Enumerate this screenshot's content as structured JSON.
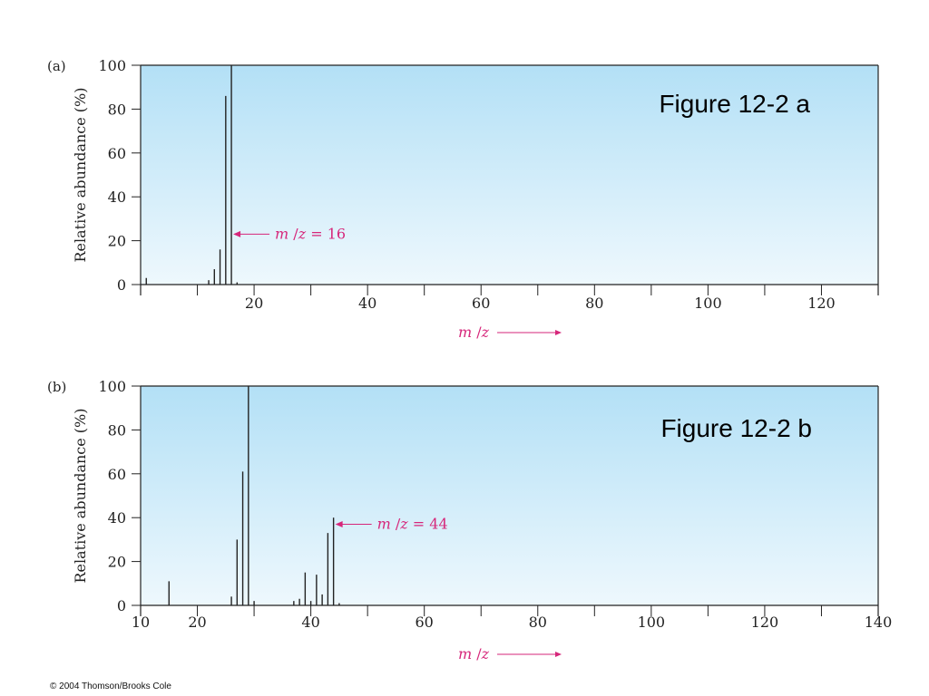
{
  "copyright": "© 2004 Thomson/Brooks Cole",
  "colors": {
    "accent": "#d6267a",
    "panel_top": "#b3e0f6",
    "panel_bottom": "#eef8fd",
    "line": "#222222"
  },
  "chart_data": [
    {
      "type": "bar",
      "panel_label": "(a)",
      "figure_caption": "Figure 12-2 a",
      "ylabel": "Relative abundance (%)",
      "xlabel": "m/z",
      "xlim": [
        0,
        130
      ],
      "ylim": [
        0,
        100
      ],
      "x_ticks": [
        20,
        40,
        60,
        80,
        100,
        120
      ],
      "x_minor_ticks": [
        0,
        10,
        30,
        50,
        70,
        90,
        110,
        130
      ],
      "y_ticks": [
        0,
        20,
        40,
        60,
        80,
        100
      ],
      "annotation": {
        "text": "m/z = 16",
        "x": 16,
        "y": 23
      },
      "peaks": [
        {
          "x": 1,
          "y": 3
        },
        {
          "x": 12,
          "y": 2
        },
        {
          "x": 13,
          "y": 7
        },
        {
          "x": 14,
          "y": 16
        },
        {
          "x": 15,
          "y": 86
        },
        {
          "x": 16,
          "y": 100
        },
        {
          "x": 17,
          "y": 1
        }
      ]
    },
    {
      "type": "bar",
      "panel_label": "(b)",
      "figure_caption": "Figure 12-2 b",
      "ylabel": "Relative abundance (%)",
      "xlabel": "m/z",
      "xlim": [
        10,
        140
      ],
      "ylim": [
        0,
        100
      ],
      "x_ticks": [
        10,
        20,
        40,
        60,
        80,
        100,
        120,
        140
      ],
      "x_minor_ticks": [
        30,
        50,
        70,
        90,
        110,
        130
      ],
      "y_ticks": [
        0,
        20,
        40,
        60,
        80,
        100
      ],
      "annotation": {
        "text": "m/z = 44",
        "x": 44,
        "y": 37
      },
      "peaks": [
        {
          "x": 15,
          "y": 11
        },
        {
          "x": 26,
          "y": 4
        },
        {
          "x": 27,
          "y": 30
        },
        {
          "x": 28,
          "y": 61
        },
        {
          "x": 29,
          "y": 100
        },
        {
          "x": 30,
          "y": 2
        },
        {
          "x": 37,
          "y": 2
        },
        {
          "x": 38,
          "y": 3
        },
        {
          "x": 39,
          "y": 15
        },
        {
          "x": 40,
          "y": 2
        },
        {
          "x": 41,
          "y": 14
        },
        {
          "x": 42,
          "y": 5
        },
        {
          "x": 43,
          "y": 33
        },
        {
          "x": 44,
          "y": 40
        },
        {
          "x": 45,
          "y": 1
        }
      ]
    }
  ]
}
